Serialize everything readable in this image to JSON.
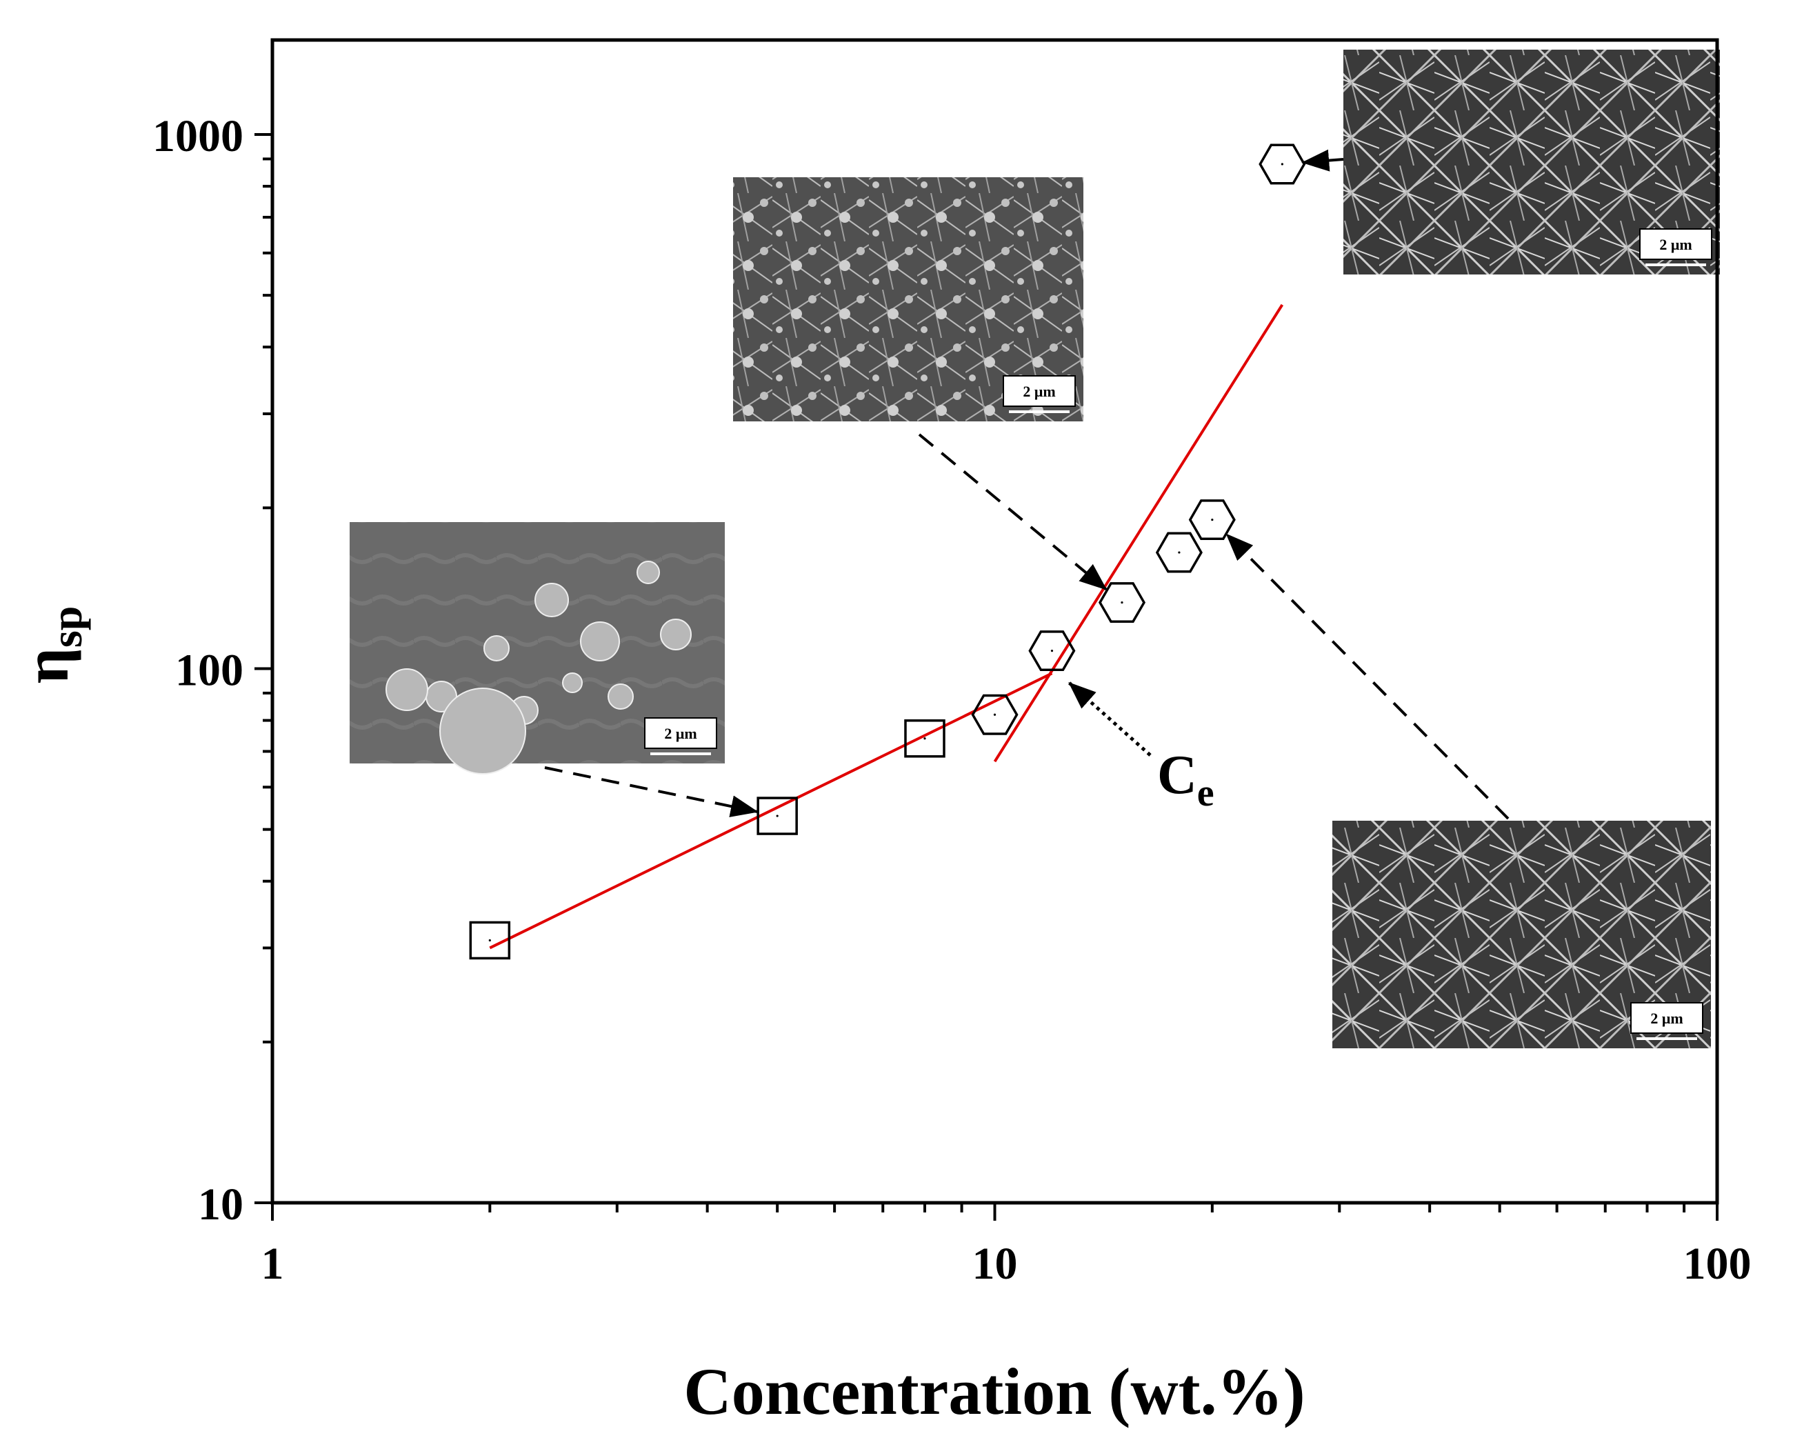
{
  "chart_data": {
    "type": "scatter",
    "xscale": "log",
    "yscale": "log",
    "xlabel": "Concentration (wt.%)",
    "ylabel": {
      "main": "η",
      "sub": "sp"
    },
    "xlim": [
      1,
      100
    ],
    "ylim": [
      10,
      1500
    ],
    "xticks": [
      {
        "value": 1,
        "label": "1"
      },
      {
        "value": 10,
        "label": "10"
      },
      {
        "value": 100,
        "label": "100"
      }
    ],
    "yticks": [
      {
        "value": 10,
        "label": "10"
      },
      {
        "value": 100,
        "label": "100"
      },
      {
        "value": 1000,
        "label": "1000"
      }
    ],
    "series": [
      {
        "name": "square",
        "marker": "square",
        "x": [
          2,
          5,
          8
        ],
        "y": [
          31,
          53,
          74
        ]
      },
      {
        "name": "hexagon",
        "marker": "hexagon",
        "x": [
          10,
          12,
          15,
          18,
          20,
          25
        ],
        "y": [
          82,
          108,
          133,
          165,
          190,
          880
        ]
      }
    ],
    "fit_lines": [
      {
        "name": "low-concentration-fit",
        "color": "#e00000",
        "x": [
          2,
          12
        ],
        "y": [
          30,
          98
        ]
      },
      {
        "name": "high-concentration-fit",
        "color": "#e00000",
        "x": [
          10,
          25
        ],
        "y": [
          67,
          480
        ]
      }
    ],
    "annotations": [
      {
        "name": "entanglement-concentration",
        "main": "C",
        "sub": "e",
        "points_to": {
          "x": 12.3,
          "y": 98
        }
      }
    ],
    "insets": [
      {
        "name": "sem-beads",
        "scale_label": "2 μm",
        "points_to": {
          "x": 5,
          "y": 53
        }
      },
      {
        "name": "sem-beaded-fibers",
        "scale_label": "2 μm",
        "points_to": {
          "x": 15,
          "y": 133
        }
      },
      {
        "name": "sem-fibers-mid",
        "scale_label": "2 μm",
        "points_to": {
          "x": 20,
          "y": 190
        }
      },
      {
        "name": "sem-fibers-high",
        "scale_label": "2 μm",
        "points_to": {
          "x": 25,
          "y": 880
        }
      }
    ]
  }
}
